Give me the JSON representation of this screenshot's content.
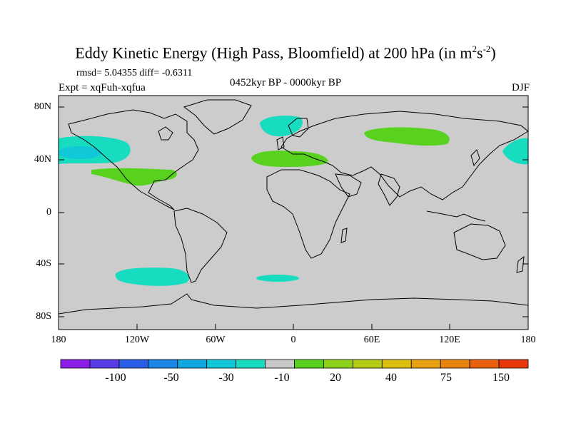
{
  "title": "Eddy Kinetic Energy (High Pass, Bloomfield) at 200 hPa (in m",
  "title_units_sup1": "2",
  "title_units_s": "s",
  "title_units_sup2": "-2",
  "title_close": ")",
  "stats_line": "rmsd= 5.04355 diff= -0.6311",
  "expt_line": "Expt = xqFuh-xqfua",
  "period_line": "0452kyr BP - 0000kyr BP",
  "season": "DJF",
  "lat_labels": [
    "80N",
    "40N",
    "0",
    "40S",
    "80S"
  ],
  "lon_labels": [
    "180",
    "120W",
    "60W",
    "0",
    "60E",
    "120E",
    "180"
  ],
  "colorbar": {
    "labels": [
      "-100",
      "-50",
      "-30",
      "-10",
      "20",
      "40",
      "75",
      "150"
    ],
    "colors": [
      "#8a1ee6",
      "#5a3ce6",
      "#2a5ee6",
      "#1a86e6",
      "#10a8e0",
      "#10c8d8",
      "#18dcc0",
      "#c8c8c8",
      "#58d21e",
      "#8cd21a",
      "#b4cc14",
      "#dcc010",
      "#e8a012",
      "#e8820e",
      "#e8600c",
      "#e8380a"
    ]
  },
  "map": {
    "land_outline_color": "#000000",
    "ocean_color": "#cccccc",
    "positive_color": "#58d21e",
    "negative_color": "#18dcc0"
  }
}
